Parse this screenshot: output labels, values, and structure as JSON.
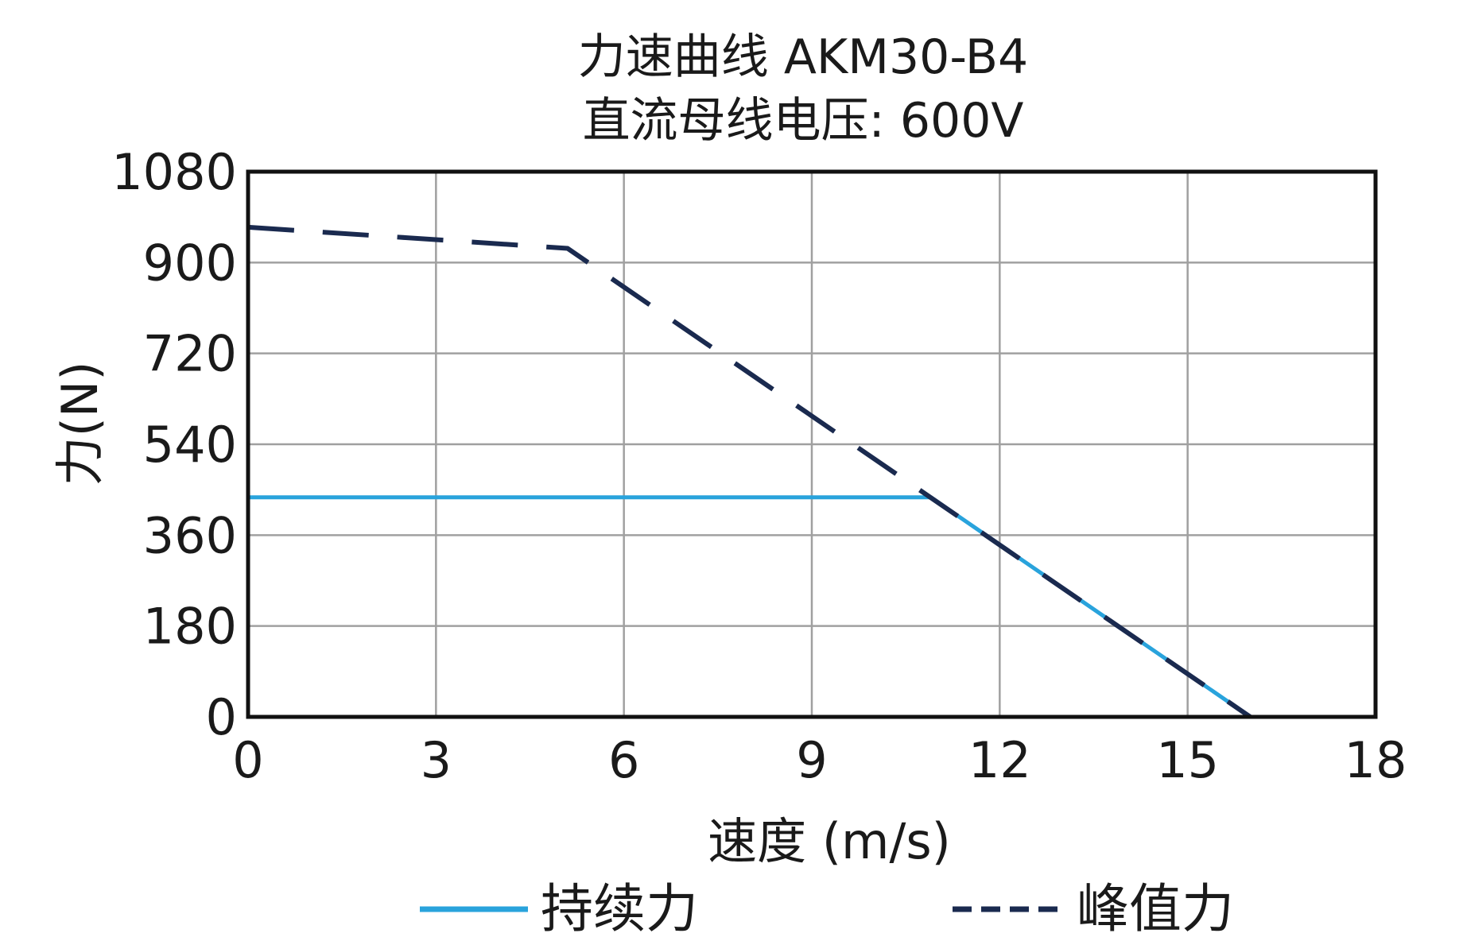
{
  "chart_data": {
    "type": "line",
    "title": "力速曲线 AKM30-B4",
    "subtitle": "直流母线电压: 600V",
    "xlabel": "速度 (m/s)",
    "ylabel": "力(N)",
    "xlim": [
      0,
      18
    ],
    "ylim": [
      0,
      1080
    ],
    "xticks": [
      0,
      3,
      6,
      9,
      12,
      15,
      18
    ],
    "yticks": [
      0,
      180,
      360,
      540,
      720,
      900,
      1080
    ],
    "grid": true,
    "legend_position": "bottom",
    "series": [
      {
        "name": "持续力",
        "style": "solid",
        "color": "#29a3dc",
        "x": [
          0,
          10.9,
          16
        ],
        "y": [
          435,
          435,
          0
        ]
      },
      {
        "name": "峰值力",
        "style": "dashed",
        "color": "#1a2a4f",
        "x": [
          0,
          5.1,
          16
        ],
        "y": [
          970,
          928,
          0
        ]
      }
    ],
    "colors": {
      "grid": "#a0a0a0",
      "frame": "#111111",
      "text": "#1a1a1a"
    }
  }
}
